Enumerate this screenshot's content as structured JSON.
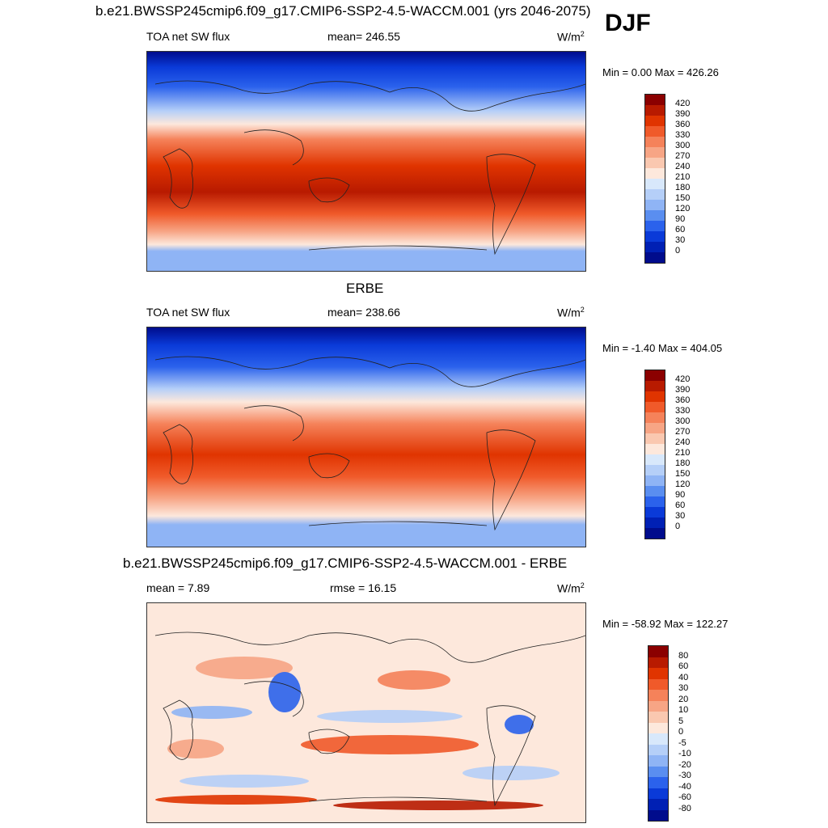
{
  "season": "DJF",
  "panels": [
    {
      "id": "model",
      "title": "b.e21.BWSSP245cmip6.f09_g17.CMIP6-SSP2-4.5-WACCM.001 (yrs 2046-2075)",
      "left_label": "TOA net SW flux",
      "center_label": "mean= 246.55",
      "units": "W/m",
      "units_sup": "2",
      "minmax": "Min =   0.00 Max = 426.26"
    },
    {
      "id": "obs",
      "title": "ERBE",
      "left_label": "TOA net SW flux",
      "center_label": "mean= 238.66",
      "units": "W/m",
      "units_sup": "2",
      "minmax": "Min =  -1.40 Max = 404.05"
    },
    {
      "id": "diff",
      "title": "b.e21.BWSSP245cmip6.f09_g17.CMIP6-SSP2-4.5-WACCM.001 - ERBE",
      "left_label": "mean =   7.89",
      "center_label": "rmse =  16.15",
      "units": "W/m",
      "units_sup": "2",
      "minmax": "Min = -58.92 Max = 122.27"
    }
  ],
  "colorbars": {
    "abs": {
      "labels": [
        "420",
        "390",
        "360",
        "330",
        "300",
        "270",
        "240",
        "210",
        "180",
        "150",
        "120",
        "90",
        "60",
        "30",
        "0"
      ],
      "colors": [
        "#8b0000",
        "#b81a00",
        "#e03400",
        "#f05a2a",
        "#f5825a",
        "#f7a585",
        "#fac8b0",
        "#fde8dc",
        "#d8e8fb",
        "#b5cff8",
        "#8fb4f5",
        "#5a8ef0",
        "#2b62ec",
        "#0a3ad8",
        "#0020b4",
        "#000c8c"
      ]
    },
    "diff": {
      "labels": [
        "80",
        "60",
        "40",
        "30",
        "20",
        "10",
        "5",
        "0",
        "-5",
        "-10",
        "-20",
        "-30",
        "-40",
        "-60",
        "-80"
      ],
      "colors": [
        "#8b0000",
        "#b81a00",
        "#e03400",
        "#f05a2a",
        "#f5825a",
        "#f7a585",
        "#fac8b0",
        "#fde8dc",
        "#d8e8fb",
        "#b5cff8",
        "#8fb4f5",
        "#5a8ef0",
        "#2b62ec",
        "#0a3ad8",
        "#0020b4",
        "#000c8c"
      ]
    }
  }
}
